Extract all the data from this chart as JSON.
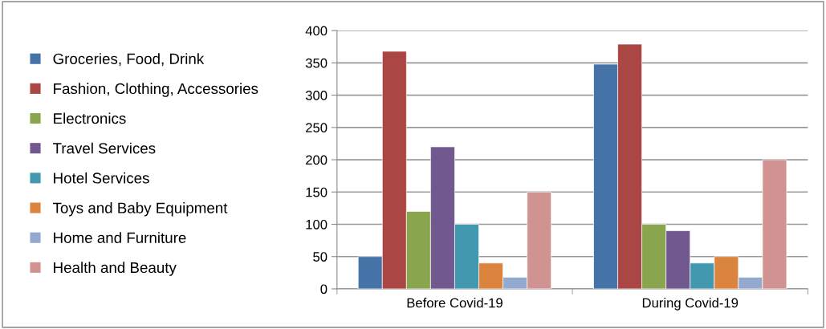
{
  "chart_data": {
    "type": "bar",
    "categories": [
      "Before Covid-19",
      "During Covid-19"
    ],
    "series": [
      {
        "name": "Groceries, Food, Drink",
        "color": "#4572a7",
        "values": [
          50,
          348
        ]
      },
      {
        "name": "Fashion, Clothing, Accessories",
        "color": "#aa4643",
        "values": [
          368,
          379
        ]
      },
      {
        "name": "Electronics",
        "color": "#89a54e",
        "values": [
          120,
          100
        ]
      },
      {
        "name": "Travel Services",
        "color": "#71588f",
        "values": [
          220,
          90
        ]
      },
      {
        "name": "Hotel Services",
        "color": "#4198af",
        "values": [
          100,
          40
        ]
      },
      {
        "name": "Toys and Baby Equipment",
        "color": "#db843d",
        "values": [
          40,
          50
        ]
      },
      {
        "name": "Home and Furniture",
        "color": "#93a9cf",
        "values": [
          18,
          18
        ]
      },
      {
        "name": "Health and Beauty",
        "color": "#d19392",
        "values": [
          150,
          200
        ]
      }
    ],
    "ylim": [
      0,
      400
    ],
    "yticks": [
      0,
      50,
      100,
      150,
      200,
      250,
      300,
      350,
      400
    ],
    "grid": "y",
    "legend": "left"
  }
}
